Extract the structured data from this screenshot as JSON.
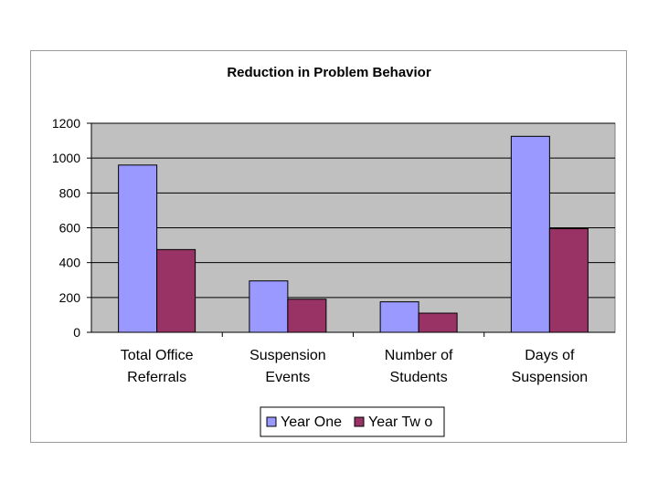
{
  "chart_data": {
    "type": "bar",
    "title": "Reduction in Problem Behavior",
    "xlabel": "",
    "ylabel": "",
    "categories": [
      [
        "Total Office",
        "Referrals"
      ],
      [
        "Suspension",
        "Events"
      ],
      [
        "Number of",
        "Students"
      ],
      [
        "Days of",
        "Suspension"
      ]
    ],
    "series": [
      {
        "name": "Year One",
        "color": "#9999ff",
        "values": [
          960,
          295,
          175,
          1125
        ]
      },
      {
        "name": "Year Tw o",
        "color": "#993366",
        "values": [
          475,
          190,
          110,
          595
        ]
      }
    ],
    "ylim": [
      0,
      1200
    ],
    "yticks": [
      0,
      200,
      400,
      600,
      800,
      1000,
      1200
    ],
    "grid": true,
    "plot_background": "#c0c0c0",
    "legend_position": "bottom"
  }
}
